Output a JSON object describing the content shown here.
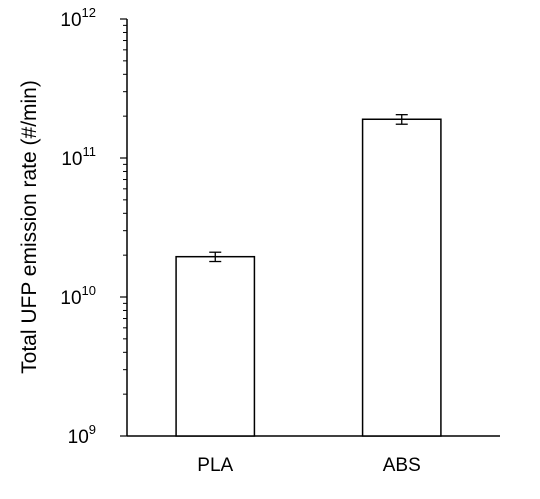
{
  "chart_data": {
    "type": "bar",
    "categories": [
      "PLA",
      "ABS"
    ],
    "values": [
      19500000000.0,
      190000000000.0
    ],
    "error": [
      1500000000.0,
      15000000000.0
    ],
    "ylabel": "Total UFP emission rate (#/min)",
    "xlabel": "",
    "title": "",
    "yscale": "log",
    "ylim": [
      1000000000.0,
      1000000000000.0
    ],
    "yticks": [
      {
        "value": 1000000000.0,
        "base": "10",
        "exp": "9"
      },
      {
        "value": 10000000000.0,
        "base": "10",
        "exp": "10"
      },
      {
        "value": 100000000000.0,
        "base": "10",
        "exp": "11"
      },
      {
        "value": 1000000000000.0,
        "base": "10",
        "exp": "12"
      }
    ],
    "grid": false,
    "legend": "none",
    "bar_fill": "#ffffff",
    "line_color": "#000000"
  }
}
